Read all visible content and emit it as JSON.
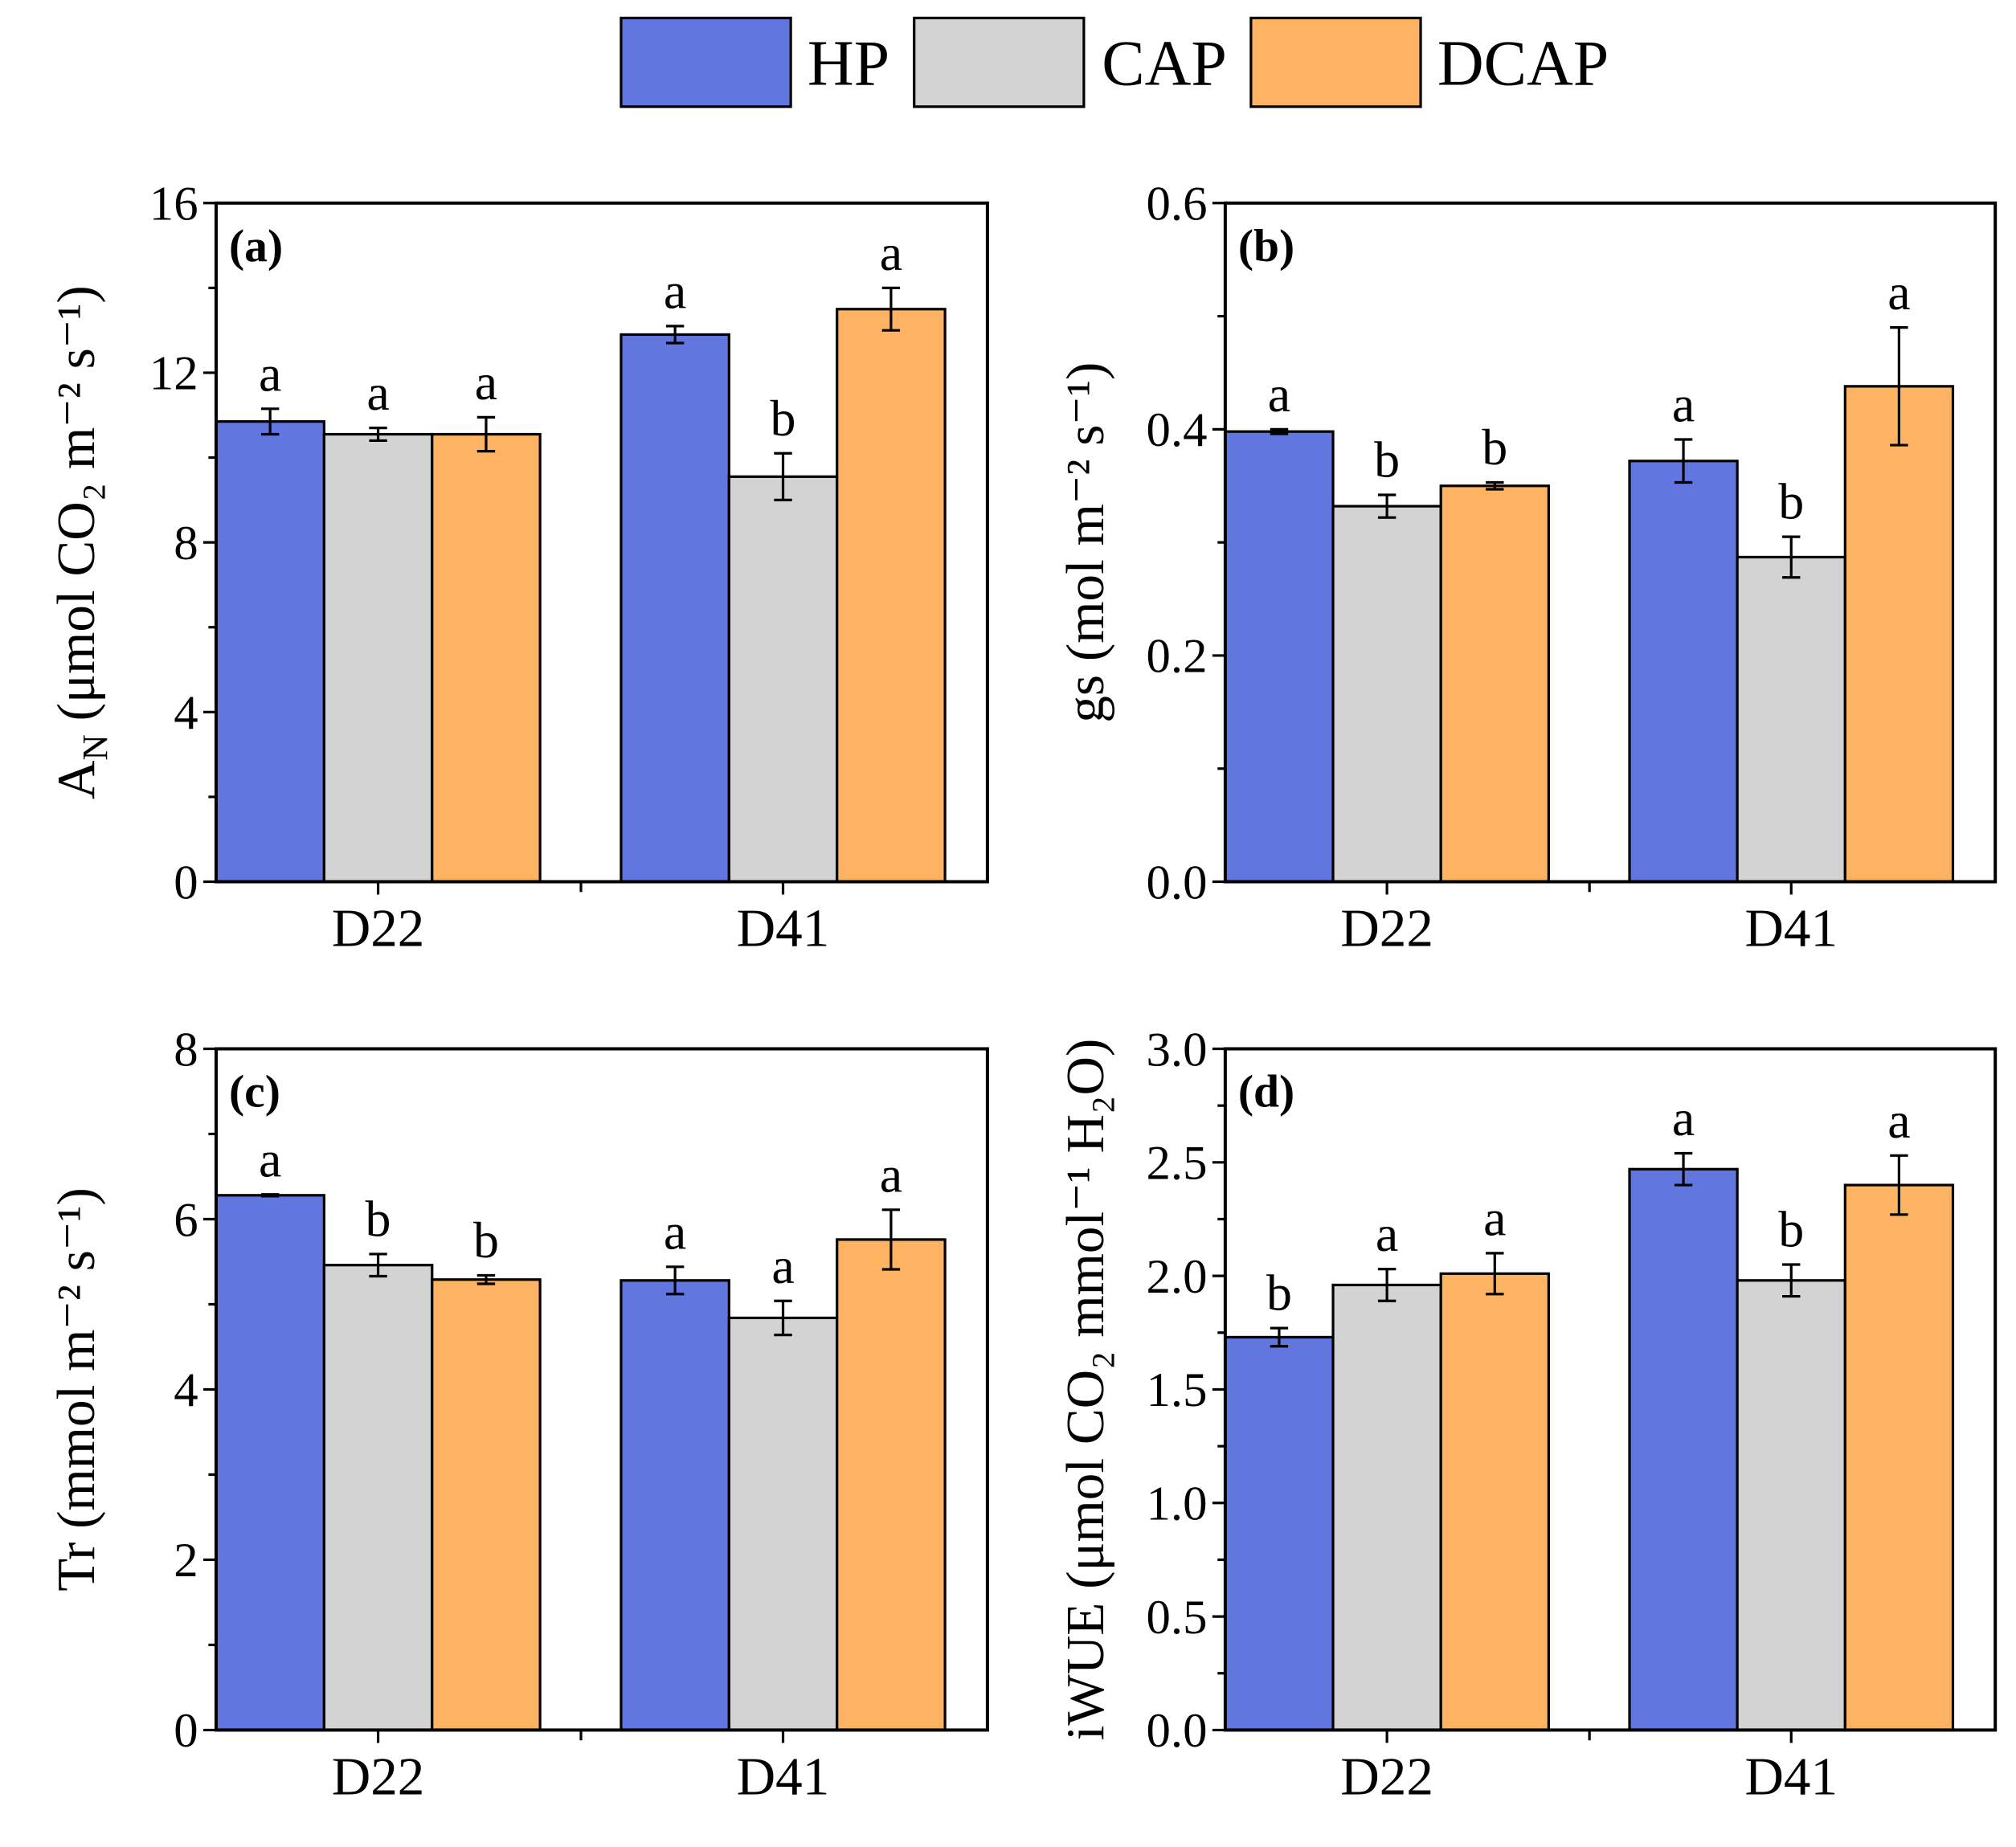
{
  "legend": [
    {
      "label": "HP",
      "color": "#6176de"
    },
    {
      "label": "CAP",
      "color": "#d3d3d3"
    },
    {
      "label": "DCAP",
      "color": "#feb362"
    }
  ],
  "chart_data": [
    {
      "type": "bar",
      "panel_label": "(a)",
      "ylabel_main": "A",
      "ylabel_sub": "N",
      "ylabel_rest": " (μmol CO₂ m⁻² s⁻¹)",
      "ylim": [
        0,
        16
      ],
      "yticks": [
        "0",
        "4",
        "8",
        "12",
        "16"
      ],
      "ytick_values": [
        0,
        4,
        8,
        12,
        16
      ],
      "categories": [
        "D22",
        "D41"
      ],
      "series": [
        {
          "name": "HP",
          "values": [
            10.85,
            12.9
          ],
          "errors": [
            0.3,
            0.2
          ],
          "letters": [
            "a",
            "a"
          ]
        },
        {
          "name": "CAP",
          "values": [
            10.55,
            9.55
          ],
          "errors": [
            0.15,
            0.55
          ],
          "letters": [
            "a",
            "b"
          ]
        },
        {
          "name": "DCAP",
          "values": [
            10.55,
            13.5
          ],
          "errors": [
            0.4,
            0.5
          ],
          "letters": [
            "a",
            "a"
          ]
        }
      ]
    },
    {
      "type": "bar",
      "panel_label": "(b)",
      "ylabel_main": "gs",
      "ylabel_sub": "",
      "ylabel_rest": " (mol m⁻² s⁻¹)",
      "ylim": [
        0,
        0.6
      ],
      "yticks": [
        "0.0",
        "0.2",
        "0.4",
        "0.6"
      ],
      "ytick_values": [
        0,
        0.2,
        0.4,
        0.6
      ],
      "categories": [
        "D22",
        "D41"
      ],
      "series": [
        {
          "name": "HP",
          "values": [
            0.398,
            0.372
          ],
          "errors": [
            0.002,
            0.019
          ],
          "letters": [
            "a",
            "a"
          ]
        },
        {
          "name": "CAP",
          "values": [
            0.332,
            0.287
          ],
          "errors": [
            0.01,
            0.018
          ],
          "letters": [
            "b",
            "b"
          ]
        },
        {
          "name": "DCAP",
          "values": [
            0.35,
            0.438
          ],
          "errors": [
            0.003,
            0.052
          ],
          "letters": [
            "b",
            "a"
          ]
        }
      ]
    },
    {
      "type": "bar",
      "panel_label": "(c)",
      "ylabel_main": "Tr",
      "ylabel_sub": "",
      "ylabel_rest": " (mmol m⁻² s⁻¹)",
      "ylim": [
        0,
        8
      ],
      "yticks": [
        "0",
        "2",
        "4",
        "6",
        "8"
      ],
      "ytick_values": [
        0,
        2,
        4,
        6,
        8
      ],
      "categories": [
        "D22",
        "D41"
      ],
      "series": [
        {
          "name": "HP",
          "values": [
            6.28,
            5.28
          ],
          "errors": [
            0.01,
            0.16
          ],
          "letters": [
            "a",
            "a"
          ]
        },
        {
          "name": "CAP",
          "values": [
            5.46,
            4.84
          ],
          "errors": [
            0.13,
            0.2
          ],
          "letters": [
            "b",
            "a"
          ]
        },
        {
          "name": "DCAP",
          "values": [
            5.29,
            5.76
          ],
          "errors": [
            0.05,
            0.35
          ],
          "letters": [
            "b",
            "a"
          ]
        }
      ]
    },
    {
      "type": "bar",
      "panel_label": "(d)",
      "ylabel_main": "iWUE",
      "ylabel_sub": "",
      "ylabel_rest": " (μmol CO₂ mmol⁻¹ H₂O)",
      "ylim": [
        0,
        3
      ],
      "yticks": [
        "0.0",
        "0.5",
        "1.0",
        "1.5",
        "2.0",
        "2.5",
        "3.0"
      ],
      "ytick_values": [
        0,
        0.5,
        1,
        1.5,
        2,
        2.5,
        3
      ],
      "categories": [
        "D22",
        "D41"
      ],
      "series": [
        {
          "name": "HP",
          "values": [
            1.73,
            2.47
          ],
          "errors": [
            0.04,
            0.07
          ],
          "letters": [
            "b",
            "a"
          ]
        },
        {
          "name": "CAP",
          "values": [
            1.96,
            1.98
          ],
          "errors": [
            0.07,
            0.07
          ],
          "letters": [
            "a",
            "b"
          ]
        },
        {
          "name": "DCAP",
          "values": [
            2.01,
            2.4
          ],
          "errors": [
            0.09,
            0.13
          ],
          "letters": [
            "a",
            "a"
          ]
        }
      ]
    }
  ]
}
